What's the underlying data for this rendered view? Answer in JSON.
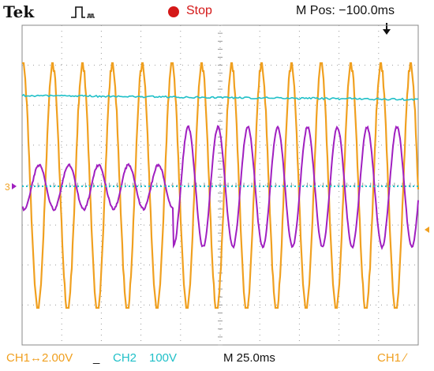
{
  "header": {
    "brand": "Tek",
    "run_state": "Stop",
    "run_state_color": "#d41818",
    "acquisition_icon": "pulse-trigger-icon",
    "m_pos": "M Pos: −100.0ms"
  },
  "channels": {
    "ch1": {
      "label": "CH1",
      "scale": "2.00V",
      "color": "#f0a020"
    },
    "ch2": {
      "label": "CH2",
      "scale": "100V",
      "color": "#20c0c8"
    },
    "math": {
      "color": "#a020c0"
    }
  },
  "footer": {
    "ch1_setting": "CH1↔2.00V",
    "ch2_label": "CH2",
    "ch2_scale": "100V",
    "timebase": "M 25.0ms",
    "trigger": "CH1 ∕",
    "ch2_coupling_mark": "_"
  },
  "ground_marker": "3",
  "colors": {
    "grid": "#888888",
    "background": "#ffffff"
  }
}
